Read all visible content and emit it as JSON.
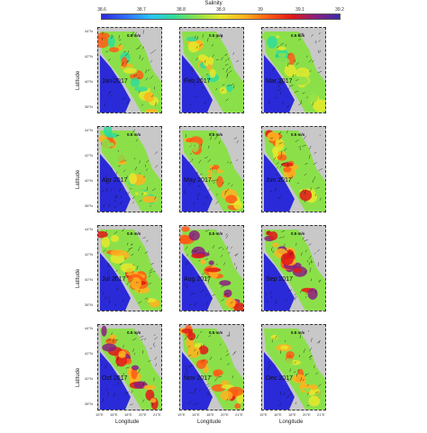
{
  "colorbar": {
    "title": "Salinity",
    "ticks": [
      "38.6",
      "38.7",
      "38.8",
      "38.9",
      "39",
      "39.1",
      "39.2"
    ],
    "colors": [
      "#2a2ad8",
      "#2f6cff",
      "#27c0ff",
      "#2edc9a",
      "#8be04a",
      "#e8e82a",
      "#ffb21e",
      "#ff5a14",
      "#e01818",
      "#8a1e80",
      "#3a2aa8"
    ]
  },
  "reference_vector": "0.5 m/s",
  "panels": [
    {
      "month": "Jan 2017",
      "level": 0.35
    },
    {
      "month": "Feb 2017",
      "level": 0.25
    },
    {
      "month": "Mar 2017",
      "level": 0.3
    },
    {
      "month": "Apr 2017",
      "level": 0.35
    },
    {
      "month": "May 2017",
      "level": 0.35
    },
    {
      "month": "Jun 2017",
      "level": 0.55
    },
    {
      "month": "Jul 2017",
      "level": 0.6
    },
    {
      "month": "Aug 2017",
      "level": 0.8
    },
    {
      "month": "Sep 2017",
      "level": 0.8
    },
    {
      "month": "Oct 2017",
      "level": 0.75
    },
    {
      "month": "Nov 2017",
      "level": 0.55
    },
    {
      "month": "Dec 2017",
      "level": 0.45
    }
  ],
  "lat_ticks": [
    "44°N",
    "42°N",
    "40°N",
    "38°N"
  ],
  "lon_ticks": [
    "15°E",
    "16°E",
    "18°E",
    "20°E",
    "21°E"
  ],
  "axis_labels": {
    "y": "Latitude",
    "x": "Longitude"
  }
}
